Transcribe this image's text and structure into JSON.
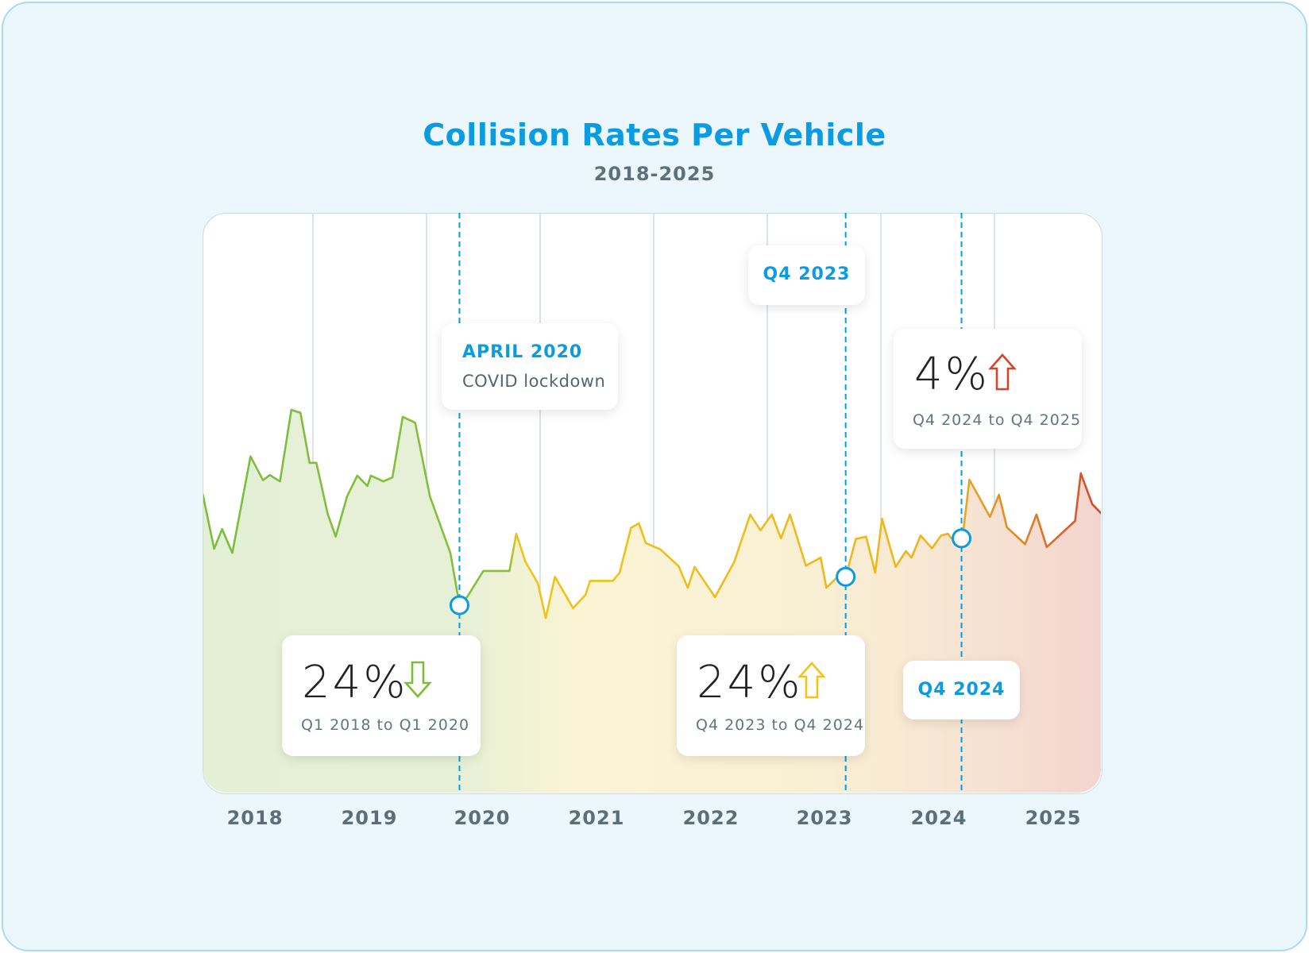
{
  "chart_data": {
    "type": "line",
    "title": "Collision Rates Per Vehicle",
    "subtitle": "2018-2025",
    "xlabel": "",
    "ylabel": "",
    "x_tick_labels": [
      "2018",
      "2019",
      "2020",
      "2021",
      "2022",
      "2023",
      "2024",
      "2025"
    ],
    "xlim": [
      2018,
      2026
    ],
    "y_axis_shown": false,
    "grid": "vertical year dividers",
    "colors": {
      "green": "#7cbd3c",
      "yellow": "#f0c419",
      "orange": "#e38a25",
      "red": "#d3452a",
      "accent": "#0b9be0"
    },
    "series": [
      {
        "x": [
          2018.03,
          2018.13,
          2018.2,
          2018.29,
          2018.45,
          2018.56,
          2018.62,
          2018.71,
          2018.81,
          2018.89,
          2018.97,
          2019.03,
          2019.13,
          2019.2,
          2019.3,
          2019.39,
          2019.48,
          2019.51,
          2019.62,
          2019.7,
          2019.79,
          2019.9,
          2020.03,
          2020.21,
          2020.29,
          2020.36,
          2020.5,
          2020.73,
          2020.79,
          2020.87,
          2020.98,
          2021.05,
          2021.13,
          2021.29,
          2021.4,
          2021.44,
          2021.64,
          2021.7,
          2021.8,
          2021.87,
          2021.93,
          2022.06,
          2022.22,
          2022.3,
          2022.36,
          2022.54,
          2022.71,
          2022.85,
          2022.94,
          2023.04,
          2023.12,
          2023.2,
          2023.34,
          2023.47,
          2023.52,
          2023.62,
          2023.69,
          2023.78,
          2023.87,
          2023.95,
          2024.01,
          2024.13,
          2024.22,
          2024.27,
          2024.35,
          2024.45,
          2024.53,
          2024.59,
          2024.62,
          2024.71,
          2024.73,
          2024.78,
          2024.96,
          2025.04,
          2025.11,
          2025.27,
          2025.37,
          2025.46,
          2025.71,
          2025.76,
          2025.86,
          2025.95
        ],
        "values": [
          51.6,
          42.2,
          45.6,
          41.5,
          58.1,
          54.0,
          54.9,
          53.8,
          66.1,
          65.6,
          57.0,
          57.0,
          48.2,
          44.3,
          51.2,
          54.8,
          53.0,
          54.8,
          53.8,
          54.5,
          64.9,
          63.9,
          51.2,
          41.5,
          32.5,
          34.0,
          38.4,
          38.4,
          44.8,
          40.0,
          36.3,
          30.3,
          37.4,
          32.0,
          34.3,
          36.7,
          36.7,
          38.1,
          45.8,
          46.6,
          43.2,
          42.1,
          39.2,
          35.5,
          39.1,
          33.9,
          40.0,
          48.1,
          45.4,
          48.1,
          44.0,
          48.1,
          39.3,
          40.7,
          35.5,
          37.4,
          37.4,
          43.9,
          44.3,
          38.1,
          47.4,
          39.1,
          41.8,
          40.7,
          44.5,
          42.3,
          44.5,
          44.8,
          44.0,
          44.0,
          46.0,
          54.1,
          47.7,
          51.5,
          45.9,
          43.0,
          48.1,
          42.5,
          47.0,
          55.2,
          49.9,
          48.1
        ]
      }
    ],
    "markers": [
      {
        "x": 2020.29,
        "value": 32.5
      },
      {
        "x": 2023.69,
        "value": 37.4
      },
      {
        "x": 2024.71,
        "value": 44.0
      }
    ],
    "annotations": {
      "april2020": {
        "title": "APRIL 2020",
        "text": "COVID lockdown"
      },
      "q4_2023": {
        "title": "Q4 2023"
      },
      "q4_2024": {
        "title": "Q4 2024"
      },
      "change1": {
        "value": "24%",
        "direction": "down",
        "color": "#7cbd3c",
        "period": "Q1 2018 to Q1 2020"
      },
      "change2": {
        "value": "24%",
        "direction": "up",
        "color": "#f0c419",
        "period": "Q4 2023 to Q4 2024"
      },
      "change3": {
        "value": "4%",
        "direction": "up",
        "color": "#d3452a",
        "period": "Q4 2024 to Q4 2025"
      }
    }
  }
}
